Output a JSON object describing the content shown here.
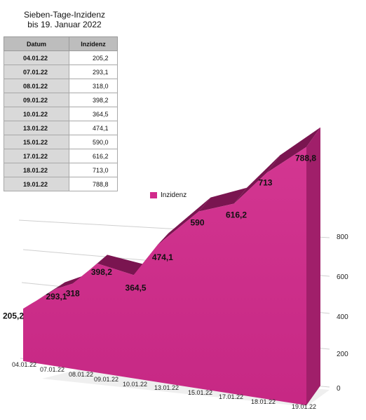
{
  "title_line1": "Sieben-Tage-Inzidenz",
  "title_line2": "bis 19. Januar 2022",
  "table": {
    "headers": [
      "Datum",
      "Inzidenz"
    ],
    "rows": [
      [
        "04.01.22",
        "205,2"
      ],
      [
        "07.01.22",
        "293,1"
      ],
      [
        "08.01.22",
        "318,0"
      ],
      [
        "09.01.22",
        "398,2"
      ],
      [
        "10.01.22",
        "364,5"
      ],
      [
        "13.01.22",
        "474,1"
      ],
      [
        "15.01.22",
        "590,0"
      ],
      [
        "17.01.22",
        "616,2"
      ],
      [
        "18.01.22",
        "713,0"
      ],
      [
        "19.01.22",
        "788,8"
      ]
    ]
  },
  "chart_data": {
    "type": "area",
    "categories": [
      "04.01.22",
      "07.01.22",
      "08.01.22",
      "09.01.22",
      "10.01.22",
      "13.01.22",
      "15.01.22",
      "17.01.22",
      "18.01.22",
      "19.01.22"
    ],
    "series": [
      {
        "name": "Inzidenz",
        "values": [
          205.2,
          293.1,
          318,
          398.2,
          364.5,
          474.1,
          590,
          616.2,
          713,
          788.8
        ],
        "color": "#d12a8b"
      }
    ],
    "data_labels": [
      "205,2",
      "293,1",
      "318",
      "398,2",
      "364,5",
      "474,1",
      "590",
      "616,2",
      "713",
      "788,8"
    ],
    "y_ticks": [
      "0",
      "200",
      "400",
      "600",
      "800"
    ],
    "ylim": [
      0,
      800
    ],
    "grid": true,
    "style": "3d",
    "legend_position": "top-center"
  }
}
